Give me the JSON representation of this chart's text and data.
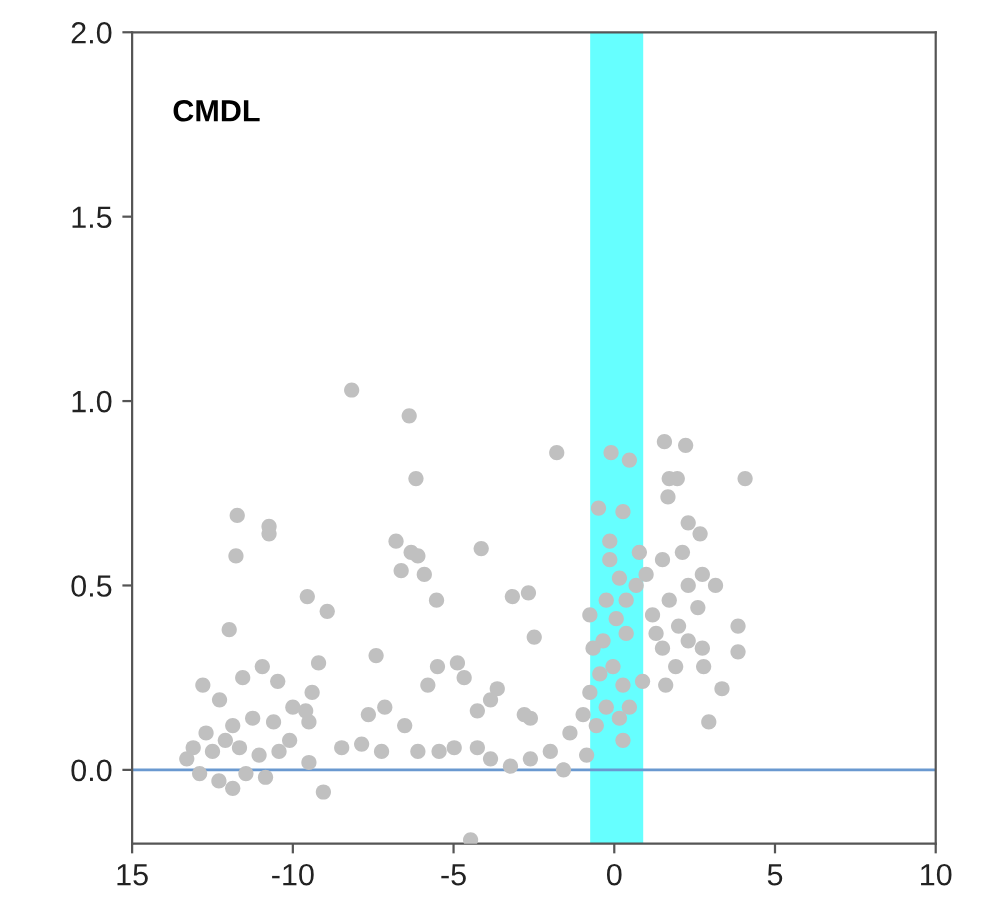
{
  "chart_data": {
    "type": "scatter",
    "title": "CMDL",
    "xlim": [
      -15,
      10
    ],
    "xticks": [
      {
        "value": -15,
        "label": "15"
      },
      {
        "value": -10,
        "label": "-10"
      },
      {
        "value": -5,
        "label": "-5"
      },
      {
        "value": 0,
        "label": "0"
      },
      {
        "value": 5,
        "label": "5"
      },
      {
        "value": 10,
        "label": "10"
      }
    ],
    "ylim": [
      -0.2,
      2.0
    ],
    "yticks": [
      {
        "value": 0,
        "label": "0.0"
      },
      {
        "value": 0.5,
        "label": "0.5"
      },
      {
        "value": 1.0,
        "label": "1.0"
      },
      {
        "value": 1.5,
        "label": "1.5"
      },
      {
        "value": 2.0,
        "label": "2.0"
      }
    ],
    "grid": false,
    "marker": "circle",
    "ref_lines": [
      {
        "axis": "y",
        "value": 0,
        "color": "#6a99d0"
      }
    ],
    "bands": [
      {
        "axis": "x",
        "from": -0.75,
        "to": 0.9,
        "color": "#66ffff"
      }
    ],
    "series": [
      {
        "color": "#c0c0c0",
        "x": [
          -8.17,
          -6.38,
          -6.17,
          -11.73,
          -10.74,
          -10.74,
          -11.77,
          -11.98,
          -9.55,
          -8.93,
          -6.79,
          -6.32,
          -6.11,
          -6.63,
          -5.91,
          -5.53,
          -4.14,
          -3.17,
          -2.67,
          -2.49,
          -1.79,
          -7.41,
          -9.2,
          -10.95,
          -11.56,
          -10.47,
          -12.8,
          -12.28,
          -9.4,
          -9.6,
          -10.0,
          -10.6,
          -11.25,
          -11.87,
          -12.7,
          -13.1,
          -13.3,
          -12.9,
          -12.3,
          -11.87,
          -10.85,
          -11.46,
          -12.5,
          -12.1,
          -11.66,
          -11.05,
          -10.43,
          -10.1,
          -9.5,
          -9.5,
          -9.05,
          -8.48,
          -7.86,
          -7.65,
          -7.14,
          -7.24,
          -6.52,
          -6.11,
          -5.8,
          -5.5,
          -4.88,
          -4.67,
          -5.45,
          -4.98,
          -4.26,
          -3.85,
          -3.64,
          -4.47,
          -4.26,
          -3.85,
          -3.23,
          -2.61,
          -1.99,
          -1.58,
          -2.8,
          -2.61,
          -1.38,
          -0.97,
          -0.86,
          -0.76,
          -0.66,
          -0.76,
          -0.49,
          -0.1,
          0.47,
          0.27,
          -0.14,
          -0.14,
          0.16,
          -0.25,
          0.06,
          -0.35,
          0.37,
          -0.04,
          -0.45,
          0.27,
          -0.25,
          0.16,
          -0.56,
          0.27,
          0.47,
          0.78,
          0.99,
          1.19,
          1.3,
          0.88,
          1.56,
          2.22,
          1.71,
          1.96,
          1.67,
          2.3,
          2.67,
          4.07,
          1.5,
          2.12,
          2.74,
          3.15,
          2.3,
          2.6,
          1.71,
          2.0,
          2.3,
          1.5,
          1.91,
          1.6,
          2.74,
          2.78,
          3.35,
          2.94,
          3.85,
          3.85,
          0.37,
          0.68
        ],
        "values": [
          1.03,
          0.96,
          0.79,
          0.69,
          0.66,
          0.64,
          0.58,
          0.38,
          0.47,
          0.43,
          0.62,
          0.59,
          0.58,
          0.54,
          0.53,
          0.46,
          0.6,
          0.47,
          0.48,
          0.36,
          0.86,
          0.31,
          0.29,
          0.28,
          0.25,
          0.24,
          0.23,
          0.19,
          0.21,
          0.16,
          0.17,
          0.13,
          0.14,
          0.12,
          0.1,
          0.06,
          0.03,
          -0.01,
          -0.03,
          -0.05,
          -0.02,
          -0.01,
          0.05,
          0.08,
          0.06,
          0.04,
          0.05,
          0.08,
          0.13,
          0.02,
          -0.06,
          0.06,
          0.07,
          0.15,
          0.17,
          0.05,
          0.12,
          0.05,
          0.23,
          0.28,
          0.29,
          0.25,
          0.05,
          0.06,
          0.16,
          0.19,
          0.22,
          -0.19,
          0.06,
          0.03,
          0.01,
          0.03,
          0.05,
          0.0,
          0.15,
          0.14,
          0.1,
          0.15,
          0.04,
          0.21,
          0.33,
          0.42,
          0.71,
          0.86,
          0.84,
          0.7,
          0.62,
          0.57,
          0.52,
          0.46,
          0.41,
          0.35,
          0.37,
          0.28,
          0.26,
          0.23,
          0.17,
          0.14,
          0.12,
          0.08,
          0.17,
          0.59,
          0.53,
          0.42,
          0.37,
          0.24,
          0.89,
          0.88,
          0.79,
          0.79,
          0.74,
          0.67,
          0.64,
          0.79,
          0.57,
          0.59,
          0.53,
          0.5,
          0.5,
          0.44,
          0.46,
          0.39,
          0.35,
          0.33,
          0.28,
          0.23,
          0.33,
          0.28,
          0.22,
          0.13,
          0.39,
          0.32,
          0.46,
          0.5
        ]
      }
    ]
  }
}
